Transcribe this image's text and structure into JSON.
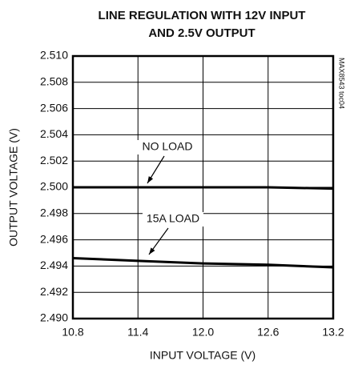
{
  "chart_data": {
    "type": "line",
    "title": [
      "LINE REGULATION WITH 12V INPUT",
      "AND 2.5V OUTPUT"
    ],
    "xlabel": "INPUT VOLTAGE (V)",
    "ylabel": "OUTPUT VOLTAGE (V)",
    "side_note": "MAX8543 toc04",
    "x": [
      10.8,
      11.4,
      12.0,
      12.6,
      13.2
    ],
    "series": [
      {
        "name": "NO LOAD",
        "color": "#000000",
        "values": [
          2.5,
          2.5,
          2.5,
          2.5,
          2.4999
        ]
      },
      {
        "name": "15A LOAD",
        "color": "#000000",
        "values": [
          2.4946,
          2.4944,
          2.4942,
          2.4941,
          2.4939
        ]
      }
    ],
    "xlim": [
      10.8,
      13.2
    ],
    "xticks": [
      10.8,
      11.4,
      {
        "value": 12,
        "label": "12.0"
      },
      12.6,
      13.2
    ],
    "ylim": [
      2.49,
      2.51
    ],
    "yticks": [
      {
        "value": 2.49,
        "label": "2.490"
      },
      2.492,
      2.494,
      2.496,
      2.498,
      {
        "value": 2.5,
        "label": "2.500"
      },
      2.502,
      2.504,
      2.506,
      2.508,
      {
        "value": 2.51,
        "label": "2.510"
      }
    ],
    "grid": true
  }
}
